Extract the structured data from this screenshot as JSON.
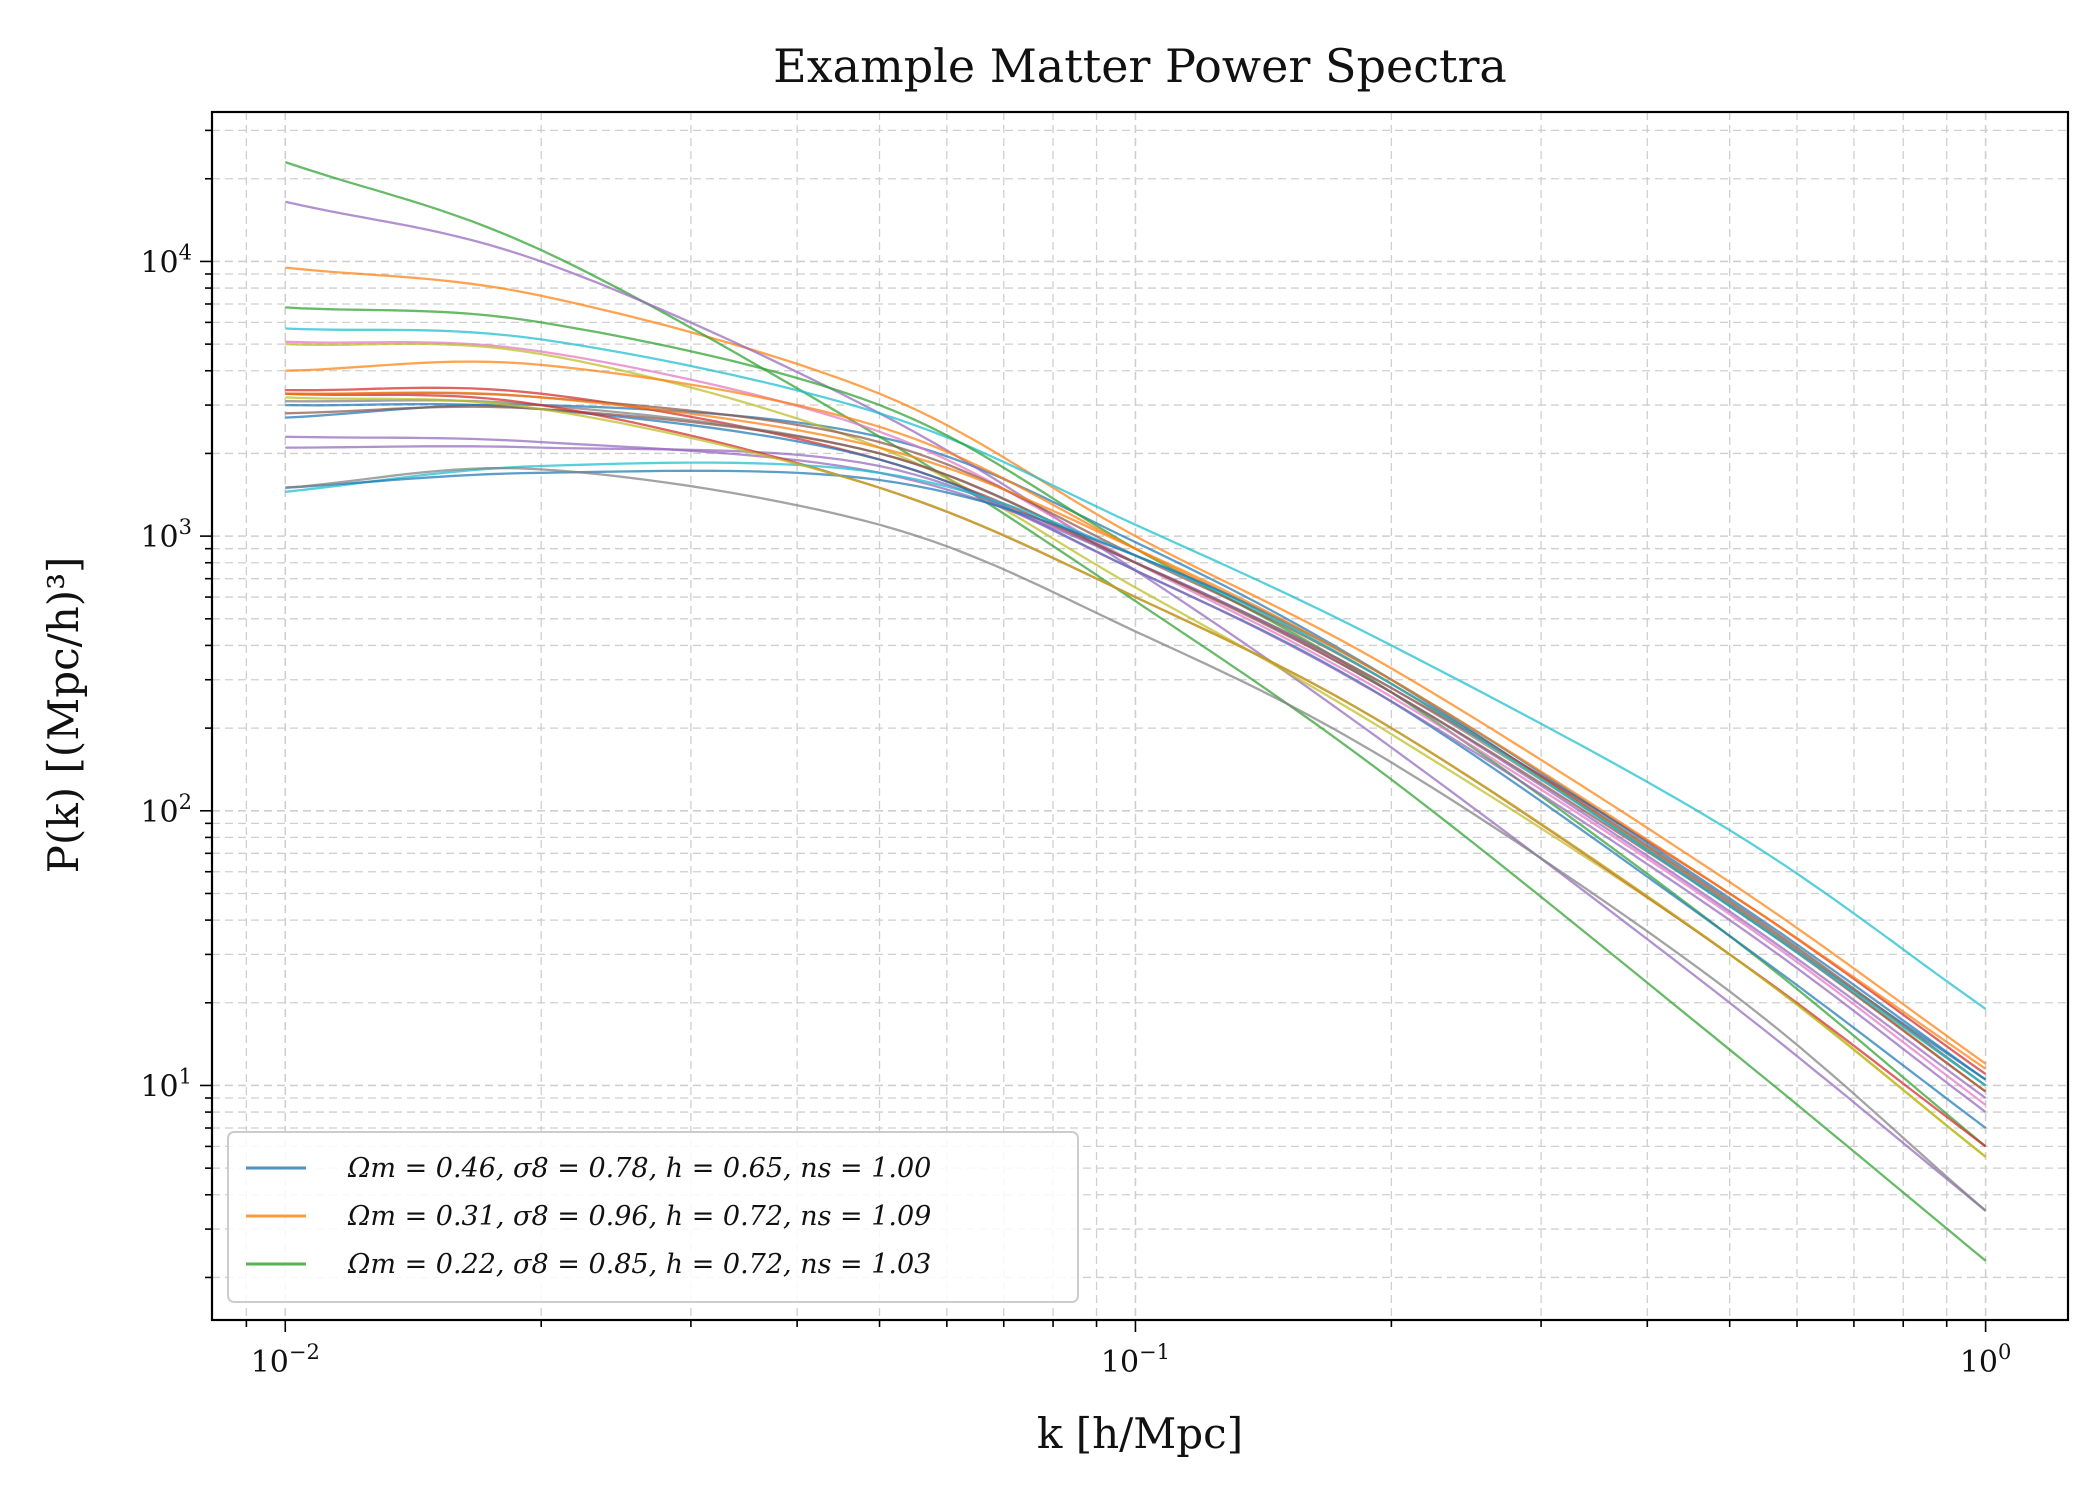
{
  "chart_data": {
    "type": "line",
    "title": "Example Matter Power Spectra",
    "xlabel": "k [h/Mpc]",
    "ylabel": "P(k) [(Mpc/h)³]",
    "xscale": "log",
    "yscale": "log",
    "xlim": [
      0.0082,
      1.25
    ],
    "ylim": [
      1.4,
      35000
    ],
    "grid": true,
    "legend_position": "lower-left",
    "x_ticks": [
      {
        "value": 0.01,
        "label_base": "10",
        "label_exp": "−2"
      },
      {
        "value": 0.1,
        "label_base": "10",
        "label_exp": "−1"
      },
      {
        "value": 1,
        "label_base": "10",
        "label_exp": "0"
      }
    ],
    "y_ticks": [
      {
        "value": 10,
        "label_base": "10",
        "label_exp": "1"
      },
      {
        "value": 100,
        "label_base": "10",
        "label_exp": "2"
      },
      {
        "value": 1000,
        "label_base": "10",
        "label_exp": "3"
      },
      {
        "value": 10000,
        "label_base": "10",
        "label_exp": "4"
      }
    ],
    "x": [
      0.01,
      0.02,
      0.05,
      0.1,
      0.2,
      0.5,
      1.0
    ],
    "series": [
      {
        "name": "Ωm = 0.46, σ8 = 0.78, h = 0.65, ns = 1.00",
        "color": "#1f77b4",
        "values": [
          2700,
          3000,
          2300,
          950,
          300,
          45,
          10.5
        ]
      },
      {
        "name": "Ωm = 0.31, σ8 = 0.96, h = 0.72, ns = 1.09",
        "color": "#ff7f0e",
        "values": [
          9500,
          7500,
          3300,
          1000,
          330,
          55,
          12
        ]
      },
      {
        "name": "Ωm = 0.22, σ8 = 0.85, h = 0.72, ns = 1.03",
        "color": "#2ca02c",
        "values": [
          23000,
          11000,
          2300,
          580,
          130,
          13.5,
          2.3
        ]
      },
      {
        "color": "#9467bd",
        "values": [
          16500,
          10000,
          2800,
          750,
          170,
          20,
          3.5
        ]
      },
      {
        "color": "#17becf",
        "values": [
          5700,
          5200,
          2800,
          1100,
          400,
          85,
          19
        ]
      },
      {
        "color": "#2ca02c",
        "values": [
          6800,
          6000,
          3000,
          900,
          270,
          35,
          6
        ]
      },
      {
        "color": "#e377c2",
        "values": [
          5100,
          4700,
          2400,
          800,
          260,
          42,
          8.5
        ]
      },
      {
        "color": "#bcbd22",
        "values": [
          5000,
          4600,
          2100,
          650,
          190,
          30,
          5.5
        ]
      },
      {
        "color": "#ff7f0e",
        "values": [
          4000,
          4200,
          2500,
          900,
          290,
          46,
          9.5
        ]
      },
      {
        "color": "#d62728",
        "values": [
          3400,
          3300,
          1900,
          800,
          280,
          50,
          11
        ]
      },
      {
        "color": "#8c564b",
        "values": [
          3300,
          3200,
          2200,
          850,
          290,
          47,
          10
        ]
      },
      {
        "color": "#7f7f7f",
        "values": [
          3100,
          3000,
          2000,
          800,
          280,
          46,
          10
        ]
      },
      {
        "color": "#1f77b4",
        "values": [
          3000,
          2900,
          1900,
          750,
          250,
          35,
          7
        ]
      },
      {
        "color": "#9467bd",
        "values": [
          2300,
          2200,
          1700,
          800,
          270,
          43,
          9
        ]
      },
      {
        "color": "#9467bd",
        "values": [
          2100,
          2100,
          1800,
          750,
          250,
          40,
          8
        ]
      },
      {
        "color": "#8c564b",
        "values": [
          2800,
          2900,
          2000,
          800,
          270,
          45,
          9.5
        ]
      },
      {
        "color": "#d62728",
        "values": [
          3300,
          3000,
          1500,
          600,
          200,
          30,
          6
        ]
      },
      {
        "color": "#17becf",
        "values": [
          1450,
          1800,
          1700,
          850,
          290,
          45,
          10
        ]
      },
      {
        "color": "#1f77b4",
        "values": [
          1500,
          1700,
          1600,
          850,
          300,
          48,
          10.5
        ]
      },
      {
        "color": "#7f7f7f",
        "values": [
          1500,
          1750,
          1100,
          450,
          150,
          22,
          3.5
        ]
      },
      {
        "color": "#bcbd22",
        "values": [
          3200,
          2900,
          1500,
          600,
          200,
          30,
          5.5
        ]
      },
      {
        "color": "#ff7f0e",
        "values": [
          3300,
          3200,
          2100,
          900,
          300,
          50,
          11.5
        ]
      }
    ]
  }
}
